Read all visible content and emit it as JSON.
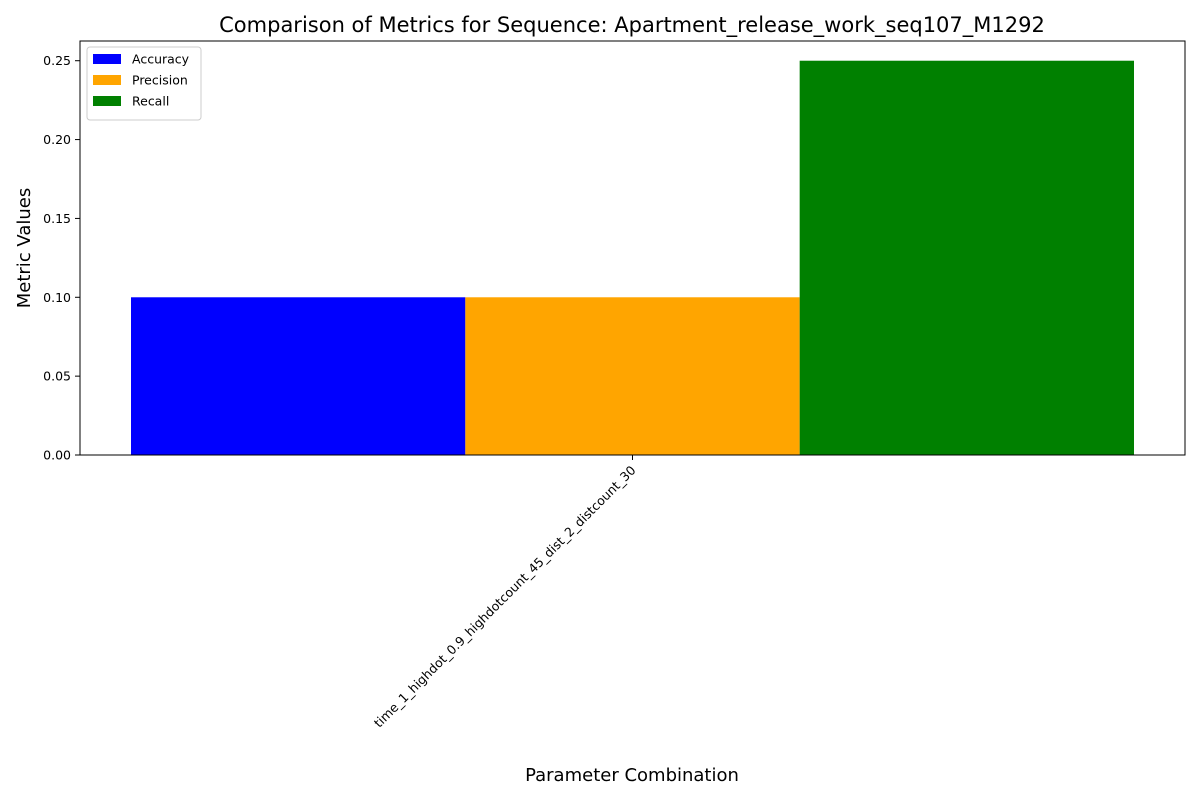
{
  "chart_data": {
    "type": "bar",
    "title": "Comparison of Metrics for Sequence: Apartment_release_work_seq107_M1292",
    "xlabel": "Parameter Combination",
    "ylabel": "Metric Values",
    "categories": [
      "time_1_highdot_0.9_highdotcount_45_dist_2_distcount_30"
    ],
    "series": [
      {
        "name": "Accuracy",
        "values": [
          0.1
        ],
        "color": "#0000ff"
      },
      {
        "name": "Precision",
        "values": [
          0.1
        ],
        "color": "#ffa500"
      },
      {
        "name": "Recall",
        "values": [
          0.25
        ],
        "color": "#008000"
      }
    ],
    "ylim": [
      0,
      0.2625
    ],
    "yticks": [
      "0.00",
      "0.05",
      "0.10",
      "0.15",
      "0.20",
      "0.25"
    ],
    "legend_position": "top-left",
    "grid": false
  }
}
